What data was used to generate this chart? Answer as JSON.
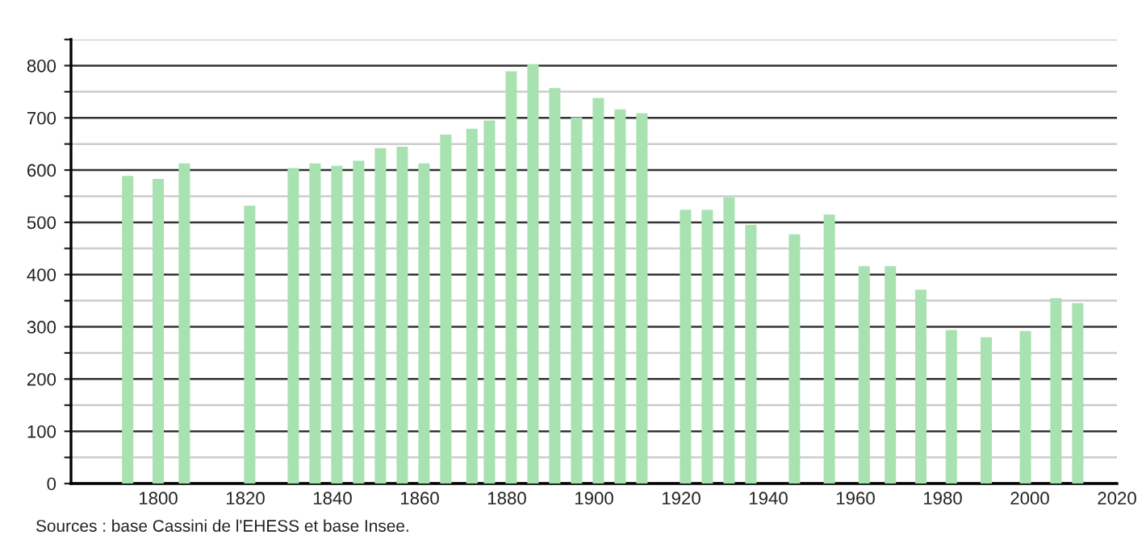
{
  "chart_data": {
    "type": "bar",
    "color": "#a8e2b0",
    "x": [
      1793,
      1800,
      1806,
      1821,
      1831,
      1836,
      1841,
      1846,
      1851,
      1856,
      1861,
      1866,
      1872,
      1876,
      1881,
      1886,
      1891,
      1896,
      1901,
      1906,
      1911,
      1921,
      1926,
      1931,
      1936,
      1946,
      1954,
      1962,
      1968,
      1975,
      1982,
      1990,
      1999,
      2006,
      2011
    ],
    "values": [
      589,
      583,
      613,
      532,
      604,
      613,
      608,
      618,
      642,
      645,
      613,
      668,
      679,
      695,
      789,
      803,
      757,
      701,
      738,
      716,
      709,
      524,
      524,
      548,
      495,
      477,
      515,
      416,
      416,
      371,
      294,
      280,
      292,
      355,
      345
    ],
    "xlim": [
      1780,
      2020
    ],
    "xticks": [
      1800,
      1820,
      1840,
      1860,
      1880,
      1900,
      1920,
      1940,
      1960,
      1980,
      2000,
      2020
    ],
    "ylim": [
      0,
      850
    ],
    "yticks": [
      0,
      {
        "value": 50,
        "label": null
      },
      100,
      {
        "value": 150,
        "label": null
      },
      200,
      {
        "value": 250,
        "label": null
      },
      300,
      {
        "value": 350,
        "label": null
      },
      400,
      {
        "value": 450,
        "label": null
      },
      500,
      {
        "value": 550,
        "label": null
      },
      600,
      {
        "value": 650,
        "label": null
      },
      700,
      {
        "value": 750,
        "label": null
      },
      800,
      {
        "value": 850,
        "label": null
      }
    ],
    "grid": "y",
    "annotations": [
      "Sources : base Cassini de l'EHESS et base Insee."
    ]
  }
}
